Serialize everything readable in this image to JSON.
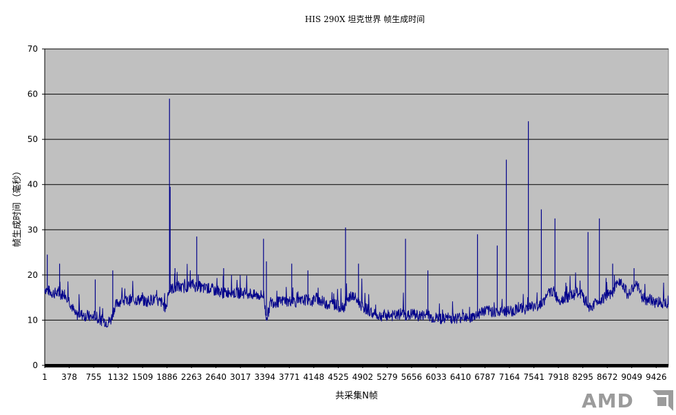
{
  "chart_data": {
    "type": "line",
    "title": "HIS 290X 坦克世界 帧生成时间",
    "xlabel": "共采集N帧",
    "ylabel": "帧生成时间（毫秒）",
    "ylim": [
      0,
      70
    ],
    "yticks": [
      0,
      10,
      20,
      30,
      40,
      50,
      60,
      70
    ],
    "xlim": [
      1,
      9620
    ],
    "xticks": [
      "1",
      "378",
      "755",
      "1132",
      "1509",
      "1886",
      "2263",
      "2640",
      "3017",
      "3394",
      "3771",
      "4148",
      "4525",
      "4902",
      "5279",
      "5656",
      "6033",
      "6410",
      "6787",
      "7164",
      "7541",
      "7918",
      "8295",
      "8672",
      "9049",
      "9426"
    ],
    "grid": true,
    "legend": "none",
    "colors": {
      "series": "#00008b",
      "plot_bg": "#c0c0c0",
      "gridline": "#000000"
    },
    "series": [
      {
        "x": [
          1,
          60,
          120,
          180,
          240,
          300,
          360,
          420,
          480,
          540,
          600,
          660,
          720,
          780,
          840,
          900,
          960,
          1020,
          1080,
          1140,
          1200,
          1260,
          1320,
          1380,
          1440,
          1500,
          1560,
          1620,
          1700,
          1760,
          1800,
          1850,
          1880,
          1900,
          1920,
          1960,
          2000,
          2060,
          2120,
          2180,
          2240,
          2280,
          2320,
          2380,
          2440,
          2500,
          2560,
          2620,
          2680,
          2740,
          2800,
          2860,
          2920,
          2980,
          3040,
          3100,
          3160,
          3220,
          3280,
          3340,
          3380,
          3410,
          3440,
          3480,
          3520,
          3580,
          3640,
          3700,
          3760,
          3820,
          3880,
          3940,
          4000,
          4060,
          4120,
          4180,
          4240,
          4300,
          4360,
          4420,
          4480,
          4540,
          4600,
          4660,
          4720,
          4780,
          4840,
          4900,
          4960,
          5020,
          5080,
          5140,
          5200,
          5260,
          5320,
          5380,
          5440,
          5500,
          5560,
          5620,
          5680,
          5740,
          5800,
          5860,
          5920,
          5980,
          6040,
          6100,
          6160,
          6220,
          6280,
          6340,
          6400,
          6460,
          6520,
          6580,
          6640,
          6700,
          6760,
          6820,
          6880,
          6940,
          7000,
          7060,
          7120,
          7180,
          7240,
          7300,
          7360,
          7420,
          7480,
          7540,
          7600,
          7660,
          7720,
          7780,
          7840,
          7900,
          7960,
          8020,
          8080,
          8140,
          8200,
          8260,
          8320,
          8380,
          8440,
          8500,
          8560,
          8620,
          8680,
          8740,
          8800,
          8860,
          8920,
          8980,
          9040,
          9100,
          9160,
          9220,
          9280,
          9340,
          9400,
          9460,
          9520,
          9580,
          9620
        ],
        "values": [
          17,
          16.5,
          16,
          16,
          15.5,
          16,
          15,
          13,
          11,
          11.5,
          11,
          11,
          10.5,
          11,
          10,
          10,
          9.5,
          10,
          13,
          14,
          14.5,
          14,
          14.5,
          14.5,
          14.5,
          14.5,
          14,
          14.5,
          14.5,
          14,
          14,
          13,
          13,
          16,
          16.5,
          17,
          17,
          17.5,
          17,
          17.5,
          17.5,
          18,
          17.5,
          17.5,
          17,
          17,
          17,
          16.5,
          16.5,
          16,
          16,
          16.5,
          16,
          16,
          16,
          16,
          16,
          15.5,
          15.5,
          15.5,
          15.5,
          11,
          11,
          14,
          14,
          14,
          14,
          14.5,
          14,
          14.5,
          14,
          14,
          14.5,
          14.5,
          14,
          15,
          14.5,
          14,
          13.5,
          13.5,
          13.5,
          13,
          13,
          13.5,
          15.5,
          15,
          14,
          13,
          12.5,
          12,
          11,
          11,
          11,
          11,
          11,
          11,
          11,
          11.5,
          11,
          11,
          11.5,
          11,
          11,
          11,
          11,
          10.5,
          10.5,
          10.5,
          10,
          10.5,
          10.5,
          10.5,
          10.5,
          11,
          11,
          10.5,
          11,
          11.5,
          12,
          12,
          12,
          12,
          11.5,
          12,
          12,
          12,
          12,
          13,
          12.5,
          12.5,
          13,
          13,
          13,
          14,
          14.5,
          16,
          16.5,
          15,
          14.5,
          15,
          15,
          15.5,
          16,
          16,
          14.5,
          13,
          13,
          14,
          14.5,
          15,
          15.5,
          15.5,
          17,
          19,
          18,
          16,
          16,
          18,
          17,
          15,
          14.5,
          14.5,
          14,
          14,
          14,
          14,
          14
        ]
      }
    ],
    "spikes": [
      {
        "x": 40,
        "y": 24.5
      },
      {
        "x": 230,
        "y": 22.5
      },
      {
        "x": 780,
        "y": 19
      },
      {
        "x": 1050,
        "y": 21
      },
      {
        "x": 1925,
        "y": 59
      },
      {
        "x": 1935,
        "y": 39.5
      },
      {
        "x": 2010,
        "y": 21.5
      },
      {
        "x": 2345,
        "y": 28.5
      },
      {
        "x": 2760,
        "y": 21.5
      },
      {
        "x": 3375,
        "y": 28
      },
      {
        "x": 3420,
        "y": 23
      },
      {
        "x": 3810,
        "y": 22.5
      },
      {
        "x": 4060,
        "y": 21
      },
      {
        "x": 4640,
        "y": 30.5
      },
      {
        "x": 4840,
        "y": 22.5
      },
      {
        "x": 5565,
        "y": 28
      },
      {
        "x": 5910,
        "y": 21
      },
      {
        "x": 6675,
        "y": 29
      },
      {
        "x": 6980,
        "y": 26.5
      },
      {
        "x": 7120,
        "y": 45.5
      },
      {
        "x": 7460,
        "y": 54
      },
      {
        "x": 7660,
        "y": 34.5
      },
      {
        "x": 7870,
        "y": 32.5
      },
      {
        "x": 8380,
        "y": 29.5
      },
      {
        "x": 8555,
        "y": 32.5
      },
      {
        "x": 8760,
        "y": 22.5
      },
      {
        "x": 9090,
        "y": 21.5
      }
    ]
  },
  "branding": {
    "logo_text": "AMD"
  }
}
